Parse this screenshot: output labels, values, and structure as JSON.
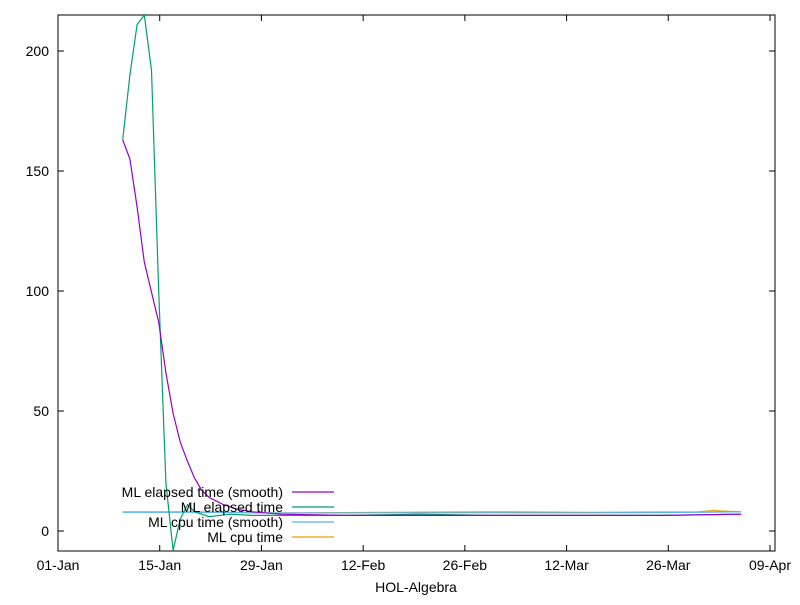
{
  "chart_data": {
    "type": "line",
    "title": "",
    "xlabel": "HOL-Algebra",
    "ylabel": "",
    "xlim": [
      "2024-01-01",
      "2024-04-09"
    ],
    "ylim": [
      -8,
      215
    ],
    "xticks": [
      "01-Jan",
      "15-Jan",
      "29-Jan",
      "12-Feb",
      "26-Feb",
      "12-Mar",
      "26-Mar",
      "09-Apr"
    ],
    "yticks": [
      0,
      50,
      100,
      150,
      200
    ],
    "grid": false,
    "legend": "bottom-left",
    "series": [
      {
        "name": "ML elapsed time (smooth)",
        "color": "#9400d3",
        "points": [
          [
            "2024-01-10",
            163
          ],
          [
            "2024-01-11",
            155
          ],
          [
            "2024-01-12",
            135
          ],
          [
            "2024-01-13",
            112
          ],
          [
            "2024-01-15",
            87
          ],
          [
            "2024-01-16",
            66
          ],
          [
            "2024-01-17",
            49
          ],
          [
            "2024-01-18",
            37
          ],
          [
            "2024-01-19",
            29
          ],
          [
            "2024-01-20",
            22
          ],
          [
            "2024-01-21",
            17
          ],
          [
            "2024-01-22",
            14
          ],
          [
            "2024-01-24",
            11
          ],
          [
            "2024-01-26",
            9
          ],
          [
            "2024-01-28",
            8
          ],
          [
            "2024-02-01",
            7
          ],
          [
            "2024-02-10",
            6.5
          ],
          [
            "2024-02-20",
            6.5
          ],
          [
            "2024-03-01",
            6.5
          ],
          [
            "2024-03-15",
            6.5
          ],
          [
            "2024-03-25",
            6.5
          ],
          [
            "2024-04-05",
            7
          ]
        ]
      },
      {
        "name": "ML elapsed time",
        "color": "#009e73",
        "points": [
          [
            "2024-01-10",
            163
          ],
          [
            "2024-01-11",
            190
          ],
          [
            "2024-01-12",
            211
          ],
          [
            "2024-01-13",
            215
          ],
          [
            "2024-01-14",
            192
          ],
          [
            "2024-01-15",
            100
          ],
          [
            "2024-01-16",
            20
          ],
          [
            "2024-01-17",
            -8
          ],
          [
            "2024-01-18",
            5
          ],
          [
            "2024-01-19",
            11
          ],
          [
            "2024-01-20",
            8
          ],
          [
            "2024-01-22",
            6
          ],
          [
            "2024-01-25",
            7
          ],
          [
            "2024-01-28",
            6.5
          ],
          [
            "2024-02-01",
            6.5
          ],
          [
            "2024-02-10",
            6.5
          ],
          [
            "2024-02-20",
            7
          ],
          [
            "2024-03-01",
            6.5
          ],
          [
            "2024-03-12",
            6.5
          ],
          [
            "2024-03-25",
            6.5
          ],
          [
            "2024-04-05",
            7
          ]
        ]
      },
      {
        "name": "ML cpu time (smooth)",
        "color": "#56b4e9",
        "points": [
          [
            "2024-01-10",
            7.8
          ],
          [
            "2024-01-20",
            7.8
          ],
          [
            "2024-02-01",
            7.5
          ],
          [
            "2024-02-15",
            7.6
          ],
          [
            "2024-03-01",
            7.6
          ],
          [
            "2024-03-15",
            7.6
          ],
          [
            "2024-03-30",
            7.8
          ],
          [
            "2024-04-05",
            8
          ]
        ]
      },
      {
        "name": "ML cpu time",
        "color": "#e69f00",
        "points": [
          [
            "2024-01-10",
            8
          ],
          [
            "2024-01-20",
            8
          ],
          [
            "2024-02-01",
            7.5
          ],
          [
            "2024-02-15",
            7.8
          ],
          [
            "2024-03-01",
            8
          ],
          [
            "2024-03-15",
            7.8
          ],
          [
            "2024-03-30",
            8
          ],
          [
            "2024-04-01",
            8.5
          ],
          [
            "2024-04-05",
            8
          ]
        ]
      }
    ]
  }
}
